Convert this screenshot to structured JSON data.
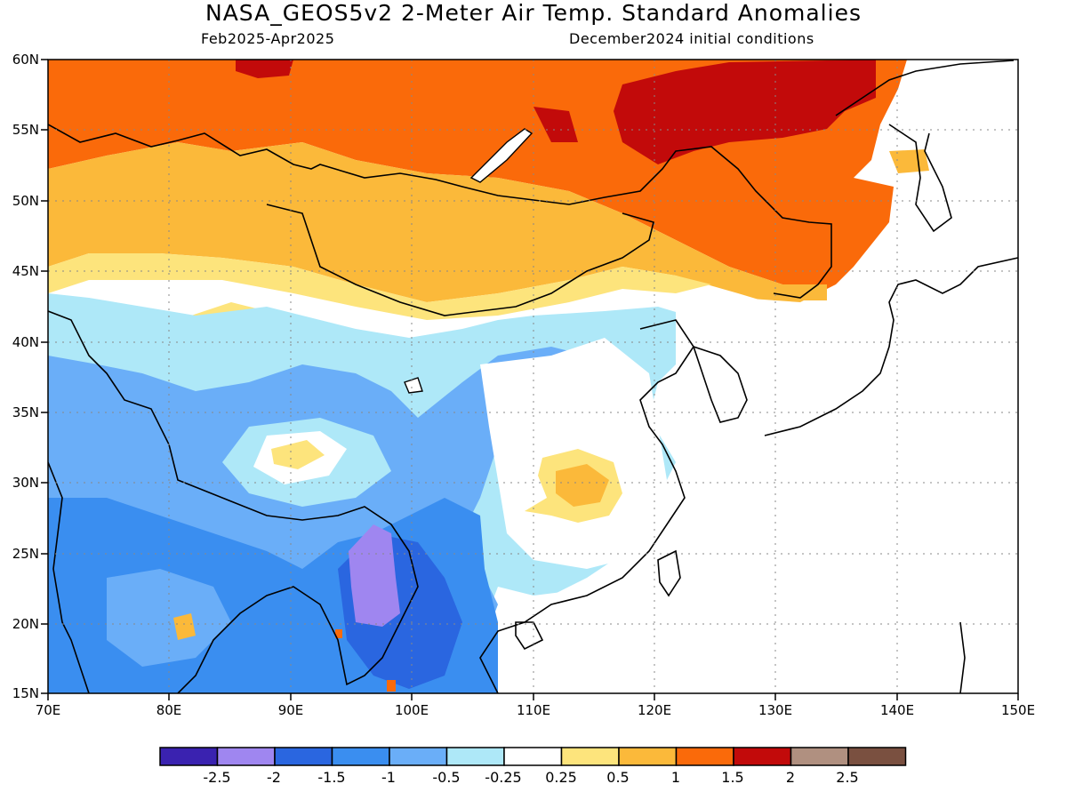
{
  "title": "NASA_GEOS5v2 2-Meter Air Temp. Standard Anomalies",
  "subtitle_left": "Feb2025-Apr2025",
  "subtitle_right": "December2024 initial conditions",
  "map": {
    "lon_range": [
      70,
      150
    ],
    "lat_range": [
      15,
      60
    ],
    "lat_labels": [
      "60N",
      "55N",
      "50N",
      "45N",
      "40N",
      "35N",
      "30N",
      "25N",
      "20N",
      "15N"
    ],
    "lon_labels": [
      "70E",
      "80E",
      "90E",
      "100E",
      "110E",
      "120E",
      "130E",
      "140E",
      "150E"
    ],
    "grid": "dotted"
  },
  "colorbar": {
    "labels": [
      "-2.5",
      "-2",
      "-1.5",
      "-1",
      "-0.5",
      "-0.25",
      "0.25",
      "0.5",
      "1",
      "1.5",
      "2",
      "2.5"
    ],
    "colors": [
      "#3a22b0",
      "#9f86f0",
      "#2a66e0",
      "#3a8ef0",
      "#6aaef8",
      "#aee8f8",
      "#ffffff",
      "#fde47c",
      "#fbb93a",
      "#fa6a0a",
      "#c20a0a",
      "#b09080",
      "#7a5040"
    ]
  }
}
